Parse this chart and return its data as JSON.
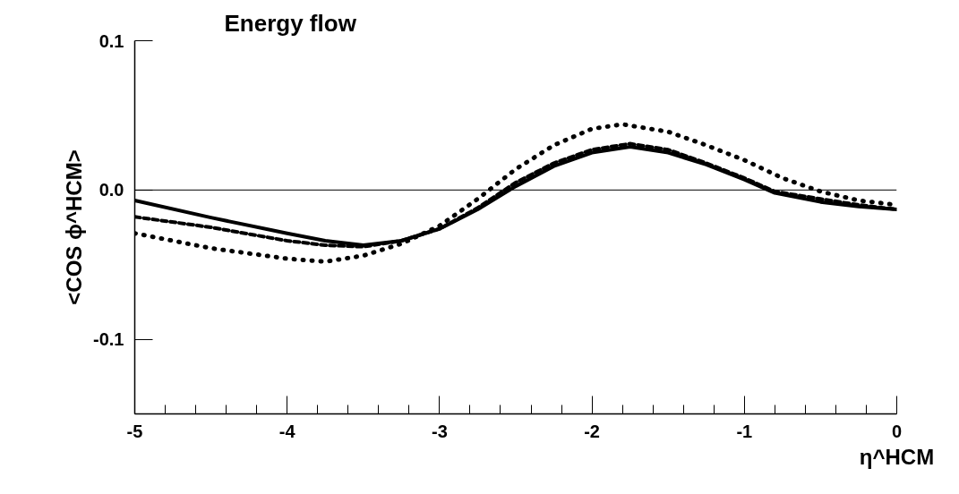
{
  "chart_data": {
    "type": "line",
    "title": "Energy flow",
    "xlabel": "η^HCM",
    "ylabel": "<COS ϕ^HCM>",
    "xlim": [
      -5,
      0
    ],
    "ylim": [
      -0.15,
      0.1
    ],
    "xticks": [
      -5,
      -4,
      -3,
      -2,
      -1,
      0
    ],
    "yticks": [
      {
        "value": 0.1,
        "label": "0.1"
      },
      {
        "value": 0.0,
        "label": "0.0"
      },
      {
        "value": -0.1,
        "label": "-0.1"
      }
    ],
    "grid": false,
    "ref_lines": [
      {
        "axis": "y",
        "value": 0,
        "label": null,
        "color": "#000000",
        "line_style": "solid"
      }
    ],
    "series": [
      {
        "color": "#000000",
        "line_style": "solid",
        "x": [
          -5,
          -4.5,
          -4,
          -3.75,
          -3.5,
          -3.25,
          -3,
          -2.75,
          -2.5,
          -2.25,
          -2,
          -1.75,
          -1.5,
          -1.25,
          -1,
          -0.8,
          -0.5,
          -0.25,
          0
        ],
        "values": [
          -0.007,
          -0.0185,
          -0.029,
          -0.034,
          -0.037,
          -0.034,
          -0.026,
          -0.013,
          0.0025,
          0.016,
          0.025,
          0.029,
          0.025,
          0.017,
          0.007,
          -0.002,
          -0.008,
          -0.011,
          -0.013
        ]
      },
      {
        "color": "#000000",
        "line_style": "dashed",
        "x": [
          -5,
          -4.5,
          -4,
          -3.75,
          -3.5,
          -3.25,
          -3,
          -2.75,
          -2.5,
          -2.25,
          -2,
          -1.75,
          -1.5,
          -1.25,
          -1,
          -0.8,
          -0.5,
          -0.25,
          0
        ],
        "values": [
          -0.018,
          -0.025,
          -0.034,
          -0.037,
          -0.038,
          -0.034,
          -0.026,
          -0.012,
          0.005,
          0.018,
          0.027,
          0.031,
          0.027,
          0.018,
          0.008,
          -0.001,
          -0.006,
          -0.01,
          -0.013
        ]
      },
      {
        "color": "#000000",
        "line_style": "dotted",
        "x": [
          -5,
          -4.5,
          -4,
          -3.75,
          -3.5,
          -3.25,
          -3,
          -2.75,
          -2.5,
          -2.25,
          -2,
          -1.8,
          -1.5,
          -1.25,
          -1,
          -0.75,
          -0.5,
          -0.25,
          0
        ],
        "values": [
          -0.029,
          -0.039,
          -0.046,
          -0.048,
          -0.044,
          -0.036,
          -0.024,
          -0.006,
          0.014,
          0.03,
          0.041,
          0.044,
          0.039,
          0.03,
          0.02,
          0.008,
          -0.001,
          -0.007,
          -0.01
        ]
      }
    ]
  }
}
